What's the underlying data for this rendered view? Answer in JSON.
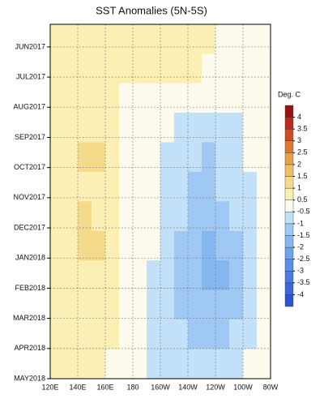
{
  "chart_data": {
    "type": "heatmap",
    "title": "SST Anomalies (5N-5S)",
    "x": [
      125,
      135,
      145,
      155,
      165,
      175,
      185,
      195,
      205,
      215,
      225,
      235,
      245,
      255,
      265,
      275
    ],
    "y": [
      -0.26,
      0.72,
      1.69,
      2.67,
      3.65,
      4.63,
      5.61,
      6.59,
      7.57,
      8.55,
      9.52,
      10.5
    ],
    "z": [
      [
        0.8,
        0.7,
        0.6,
        0.6,
        0.5,
        0.5,
        0.5,
        0.6,
        0.7,
        0.6,
        0.5,
        0.5,
        0.4,
        0.3,
        0.3,
        0.2
      ],
      [
        0.7,
        0.7,
        0.6,
        0.6,
        0.6,
        0.5,
        0.6,
        0.7,
        0.7,
        0.6,
        0.5,
        0.4,
        0.3,
        0.3,
        0.2,
        0.2
      ],
      [
        0.8,
        0.9,
        0.7,
        0.6,
        0.5,
        0.4,
        0.4,
        0.3,
        0.2,
        0.1,
        0,
        -0.2,
        -0.2,
        -0.1,
        0,
        0.1
      ],
      [
        0.9,
        0.8,
        0.9,
        0.7,
        0.5,
        0.3,
        0,
        -0.3,
        -0.4,
        -0.6,
        -0.7,
        -0.8,
        -0.8,
        -0.6,
        -0.4,
        0.1
      ],
      [
        0.8,
        0.9,
        1.3,
        1.0,
        0.6,
        0.2,
        -0.2,
        -0.5,
        -0.6,
        -0.8,
        -1,
        -1.1,
        -0.9,
        -0.7,
        -0.5,
        0
      ],
      [
        0.7,
        0.8,
        0.9,
        0.8,
        0.6,
        0.3,
        0,
        -0.4,
        -0.6,
        -0.8,
        -1.1,
        -1.2,
        -1,
        -0.8,
        -0.6,
        -0.2
      ],
      [
        0.8,
        0.7,
        1.0,
        0.9,
        0.6,
        0.4,
        0.2,
        -0.3,
        -0.7,
        -0.9,
        -1.2,
        -1.3,
        -1.2,
        -1,
        -0.7,
        -0.3
      ],
      [
        0.9,
        0.9,
        1.3,
        1.1,
        0.7,
        0.4,
        0.1,
        -0.5,
        -0.9,
        -1.1,
        -1.3,
        -1.6,
        -1.5,
        -1.2,
        -0.8,
        -0.4
      ],
      [
        0.8,
        0.8,
        0.9,
        0.8,
        0.6,
        0.3,
        -0.2,
        -0.7,
        -1,
        -1.2,
        -1.5,
        -1.8,
        -1.6,
        -1.3,
        -0.9,
        -0.5
      ],
      [
        0.7,
        0.8,
        0.9,
        0.7,
        0.5,
        0.2,
        -0.3,
        -0.7,
        -1,
        -1.1,
        -1.4,
        -1.5,
        -1.4,
        -1.2,
        -0.8,
        -0.5
      ],
      [
        0.7,
        0.8,
        0.8,
        0.7,
        0.5,
        0.2,
        -0.2,
        -0.6,
        -0.9,
        -1,
        -1.1,
        -1.2,
        -1.1,
        -0.9,
        -0.7,
        -0.4
      ],
      [
        0.6,
        0.7,
        0.7,
        0.6,
        0.4,
        0.1,
        -0.3,
        -0.6,
        -0.8,
        -0.9,
        -0.9,
        -0.8,
        -0.7,
        -0.6,
        -0.4,
        -0.2
      ]
    ],
    "xlim": [
      120,
      280
    ],
    "xticks": [
      {
        "value": 120,
        "label": "120E"
      },
      {
        "value": 140,
        "label": "140E"
      },
      {
        "value": 160,
        "label": "160E"
      },
      180,
      {
        "value": 200,
        "label": "160W"
      },
      {
        "value": 220,
        "label": "140W"
      },
      {
        "value": 240,
        "label": "120W"
      },
      {
        "value": 260,
        "label": "100W"
      },
      {
        "value": 280,
        "label": "80W"
      }
    ],
    "ylim": [
      -0.75,
      11
    ],
    "yticks": [
      {
        "value": 0,
        "label": "JUN2017"
      },
      {
        "value": 1,
        "label": "JUL2017"
      },
      {
        "value": 2,
        "label": "AUG2017"
      },
      {
        "value": 3,
        "label": "SEP2017"
      },
      {
        "value": 4,
        "label": "OCT2017"
      },
      {
        "value": 5,
        "label": "NOV2017"
      },
      {
        "value": 6,
        "label": "DEC2017"
      },
      {
        "value": 7,
        "label": "JAN2018"
      },
      {
        "value": 8,
        "label": "FEB2018"
      },
      {
        "value": 9,
        "label": "MAR2018"
      },
      {
        "value": 10,
        "label": "APR2018"
      },
      {
        "value": 11,
        "label": "MAY2018"
      }
    ],
    "grid": true,
    "colorbar": {
      "title": "Deg. C",
      "levels": [
        -4,
        -3.5,
        -3,
        -2.5,
        -2,
        -1.5,
        -1,
        -0.5,
        0.5,
        1,
        1.5,
        2,
        2.5,
        3,
        3.5,
        4
      ],
      "colors": [
        "#2b55cf",
        "#3b68d9",
        "#4b7be0",
        "#5b8fe6",
        "#6fa3ec",
        "#86b6f0",
        "#a0c8f4",
        "#c2e0f8",
        "#fdfbee",
        "#fbefb4",
        "#f5da8c",
        "#f0c066",
        "#eaa048",
        "#de7832",
        "#cd4d24",
        "#b82a1d",
        "#961414"
      ]
    }
  }
}
